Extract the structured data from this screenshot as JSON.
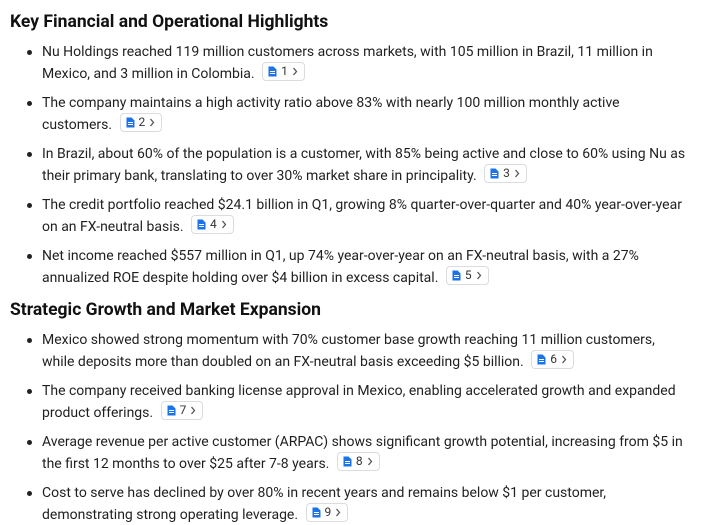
{
  "sections": [
    {
      "title": "Key Financial and Operational Highlights",
      "items": [
        {
          "text": "Nu Holdings reached 119 million customers across markets, with 105 million in Brazil, 11 million in Mexico, and 3 million in Colombia.",
          "citation": 1
        },
        {
          "text": "The company maintains a high activity ratio above 83% with nearly 100 million monthly active customers.",
          "citation": 2
        },
        {
          "text": "In Brazil, about 60% of the population is a customer, with 85% being active and close to 60% using Nu as their primary bank, translating to over 30% market share in principality.",
          "citation": 3
        },
        {
          "text": "The credit portfolio reached $24.1 billion in Q1, growing 8% quarter-over-quarter and 40% year-over-year on an FX-neutral basis.",
          "citation": 4
        },
        {
          "text": "Net income reached $557 million in Q1, up 74% year-over-year on an FX-neutral basis, with a 27% annualized ROE despite holding over $4 billion in excess capital.",
          "citation": 5
        }
      ]
    },
    {
      "title": "Strategic Growth and Market Expansion",
      "items": [
        {
          "text": "Mexico showed strong momentum with 70% customer base growth reaching 11 million customers, while deposits more than doubled on an FX-neutral basis exceeding $5 billion.",
          "citation": 6
        },
        {
          "text": "The company received banking license approval in Mexico, enabling accelerated growth and expanded product offerings.",
          "citation": 7
        },
        {
          "text": "Average revenue per active customer (ARPAC) shows significant growth potential, increasing from $5 in the first 12 months to over $25 after 7-8 years.",
          "citation": 8
        },
        {
          "text": "Cost to serve has declined by over 80% in recent years and remains below $1 per customer, demonstrating strong operating leverage.",
          "citation": 9
        }
      ]
    }
  ]
}
